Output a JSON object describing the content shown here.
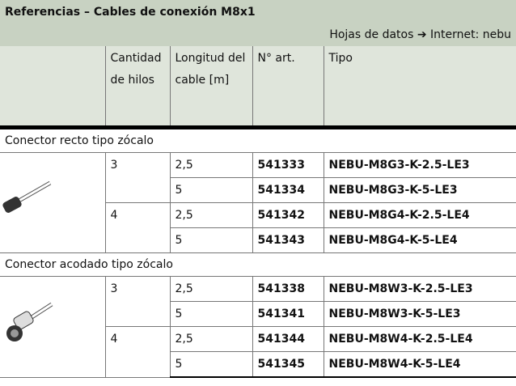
{
  "header": {
    "title": "Referencias – Cables de conexión M8x1",
    "note": "Hojas de datos ➔ Internet: nebu"
  },
  "columns": [
    "Cantidad de hilos",
    "Longitud del cable [m]",
    "N° art.",
    "Tipo"
  ],
  "sections": [
    {
      "label": "Conector recto tipo zócalo",
      "groups": [
        {
          "wires": "3",
          "rows": [
            [
              "2,5",
              "541333",
              "NEBU-M8G3-K-2.5-LE3"
            ],
            [
              "5",
              "541334",
              "NEBU-M8G3-K-5-LE3"
            ]
          ]
        },
        {
          "wires": "4",
          "rows": [
            [
              "2,5",
              "541342",
              "NEBU-M8G4-K-2.5-LE4"
            ],
            [
              "5",
              "541343",
              "NEBU-M8G4-K-5-LE4"
            ]
          ]
        }
      ]
    },
    {
      "label": "Conector acodado tipo zócalo",
      "groups": [
        {
          "wires": "3",
          "rows": [
            [
              "2,5",
              "541338",
              "NEBU-M8W3-K-2.5-LE3"
            ],
            [
              "5",
              "541341",
              "NEBU-M8W3-K-5-LE3"
            ]
          ]
        },
        {
          "wires": "4",
          "rows": [
            [
              "2,5",
              "541344",
              "NEBU-M8W4-K-2.5-LE4"
            ],
            [
              "5",
              "541345",
              "NEBU-M8W4-K-5-LE4"
            ]
          ]
        }
      ]
    }
  ]
}
